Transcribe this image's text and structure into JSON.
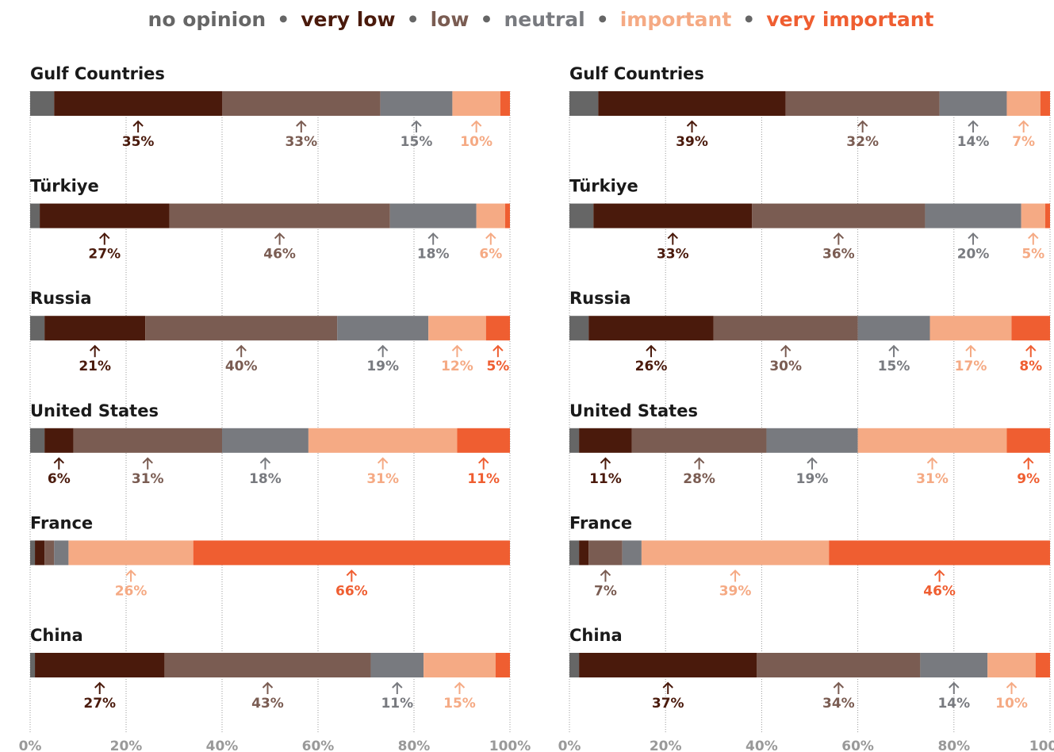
{
  "chart_data": [
    {
      "type": "bar",
      "stacked": true,
      "orientation": "horizontal",
      "xlim": [
        0,
        100
      ],
      "x_ticks": [
        "0%",
        "20%",
        "40%",
        "60%",
        "80%",
        "100%"
      ],
      "grid": true,
      "legend_position": "top-center",
      "series_names": [
        "no opinion",
        "very low",
        "low",
        "neutral",
        "important",
        "very important"
      ],
      "categories": [
        "Gulf Countries",
        "Türkiye",
        "Russia",
        "United States",
        "France",
        "China"
      ],
      "values": [
        [
          5,
          35,
          33,
          15,
          10,
          2
        ],
        [
          2,
          27,
          46,
          18,
          6,
          1
        ],
        [
          3,
          21,
          40,
          19,
          12,
          5
        ],
        [
          3,
          6,
          31,
          18,
          31,
          11
        ],
        [
          1,
          2,
          2,
          3,
          26,
          66
        ],
        [
          1,
          27,
          43,
          11,
          15,
          3
        ]
      ],
      "labels": [
        [
          "",
          "35%",
          "33%",
          "15%",
          "10%",
          ""
        ],
        [
          "",
          "27%",
          "46%",
          "18%",
          "6%",
          ""
        ],
        [
          "",
          "21%",
          "40%",
          "19%",
          "12%",
          "5%"
        ],
        [
          "",
          "6%",
          "31%",
          "18%",
          "31%",
          "11%"
        ],
        [
          "",
          "",
          "",
          "",
          "26%",
          "66%"
        ],
        [
          "",
          "27%",
          "43%",
          "11%",
          "15%",
          ""
        ]
      ]
    },
    {
      "type": "bar",
      "stacked": true,
      "orientation": "horizontal",
      "xlim": [
        0,
        100
      ],
      "x_ticks": [
        "0%",
        "20%",
        "40%",
        "60%",
        "80%",
        "100%"
      ],
      "grid": true,
      "series_names": [
        "no opinion",
        "very low",
        "low",
        "neutral",
        "important",
        "very important"
      ],
      "categories": [
        "Gulf Countries",
        "Türkiye",
        "Russia",
        "United States",
        "France",
        "China"
      ],
      "values": [
        [
          6,
          39,
          32,
          14,
          7,
          2
        ],
        [
          5,
          33,
          36,
          20,
          5,
          1
        ],
        [
          4,
          26,
          30,
          15,
          17,
          8
        ],
        [
          2,
          11,
          28,
          19,
          31,
          9
        ],
        [
          2,
          2,
          7,
          4,
          39,
          46
        ],
        [
          2,
          37,
          34,
          14,
          10,
          3
        ]
      ],
      "labels": [
        [
          "",
          "39%",
          "32%",
          "14%",
          "7%",
          ""
        ],
        [
          "",
          "33%",
          "36%",
          "20%",
          "5%",
          ""
        ],
        [
          "",
          "26%",
          "30%",
          "15%",
          "17%",
          "8%"
        ],
        [
          "",
          "11%",
          "28%",
          "19%",
          "31%",
          "9%"
        ],
        [
          "",
          "",
          "7%",
          "",
          "39%",
          "46%"
        ],
        [
          "",
          "37%",
          "34%",
          "14%",
          "10%",
          ""
        ]
      ]
    }
  ],
  "legend": {
    "separator": "•",
    "items": [
      {
        "label": "no opinion",
        "color": "#666666"
      },
      {
        "label": "very low",
        "color": "#4a1a0c"
      },
      {
        "label": "low",
        "color": "#7a5c52"
      },
      {
        "label": "neutral",
        "color": "#787a7f"
      },
      {
        "label": "important",
        "color": "#f5aa84"
      },
      {
        "label": "very important",
        "color": "#ef5e31"
      }
    ]
  },
  "colors": {
    "segments": [
      "#666666",
      "#4a1a0c",
      "#7a5c52",
      "#787a7f",
      "#f5aa84",
      "#ef5e31"
    ],
    "labels": [
      "#666666",
      "#4a1a0c",
      "#7a5c52",
      "#787a7f",
      "#f5aa84",
      "#ef5e31"
    ],
    "category_title": "#1a1a1a",
    "tick": "#999999",
    "grid": "#999999"
  }
}
